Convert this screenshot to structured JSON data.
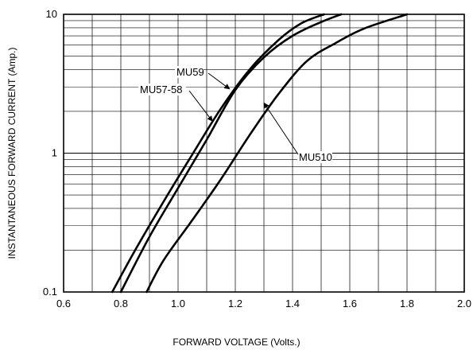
{
  "chart_data": {
    "type": "line",
    "title": "",
    "xlabel": "FORWARD VOLTAGE (Volts.)",
    "ylabel": "INSTANTANEOUS FORWARD CURRENT (Amp.)",
    "xlim": [
      0.6,
      2.0
    ],
    "ylim": [
      0.1,
      10
    ],
    "y_scale": "log",
    "grid": true,
    "x_ticks": [
      0.6,
      0.8,
      1.0,
      1.2,
      1.4,
      1.6,
      1.8,
      2.0
    ],
    "x_tick_labels": [
      "0.6",
      "0.8",
      "1.0",
      "1.2",
      "1.4",
      "1.6",
      "1.8",
      "2.0"
    ],
    "y_ticks": [
      0.1,
      1,
      10
    ],
    "y_tick_labels": [
      "0.1",
      "1",
      "10"
    ],
    "line_color": "#000000",
    "series": [
      {
        "name": "MU59",
        "x": [
          0.77,
          0.85,
          0.95,
          1.05,
          1.15,
          1.25,
          1.35,
          1.43,
          1.51
        ],
        "y": [
          0.1,
          0.2,
          0.45,
          0.98,
          2.1,
          4.0,
          6.5,
          8.6,
          10
        ]
      },
      {
        "name": "MU57-58",
        "x": [
          0.8,
          0.9,
          1.0,
          1.1,
          1.2,
          1.3,
          1.4,
          1.5,
          1.57
        ],
        "y": [
          0.1,
          0.25,
          0.56,
          1.25,
          2.85,
          4.9,
          7.0,
          8.8,
          10
        ]
      },
      {
        "name": "MU510",
        "x": [
          0.89,
          0.95,
          1.05,
          1.15,
          1.25,
          1.35,
          1.45,
          1.55,
          1.65,
          1.8
        ],
        "y": [
          0.1,
          0.17,
          0.33,
          0.65,
          1.35,
          2.65,
          4.6,
          6.2,
          7.9,
          10
        ]
      }
    ],
    "annotations": [
      {
        "text": "MU59",
        "series": "MU59",
        "x": 1.18,
        "y": 2.9
      },
      {
        "text": "MU57-58",
        "series": "MU57-58",
        "x": 1.12,
        "y": 1.7
      },
      {
        "text": "MU510",
        "series": "MU510",
        "x": 1.3,
        "y": 2.3
      }
    ]
  }
}
